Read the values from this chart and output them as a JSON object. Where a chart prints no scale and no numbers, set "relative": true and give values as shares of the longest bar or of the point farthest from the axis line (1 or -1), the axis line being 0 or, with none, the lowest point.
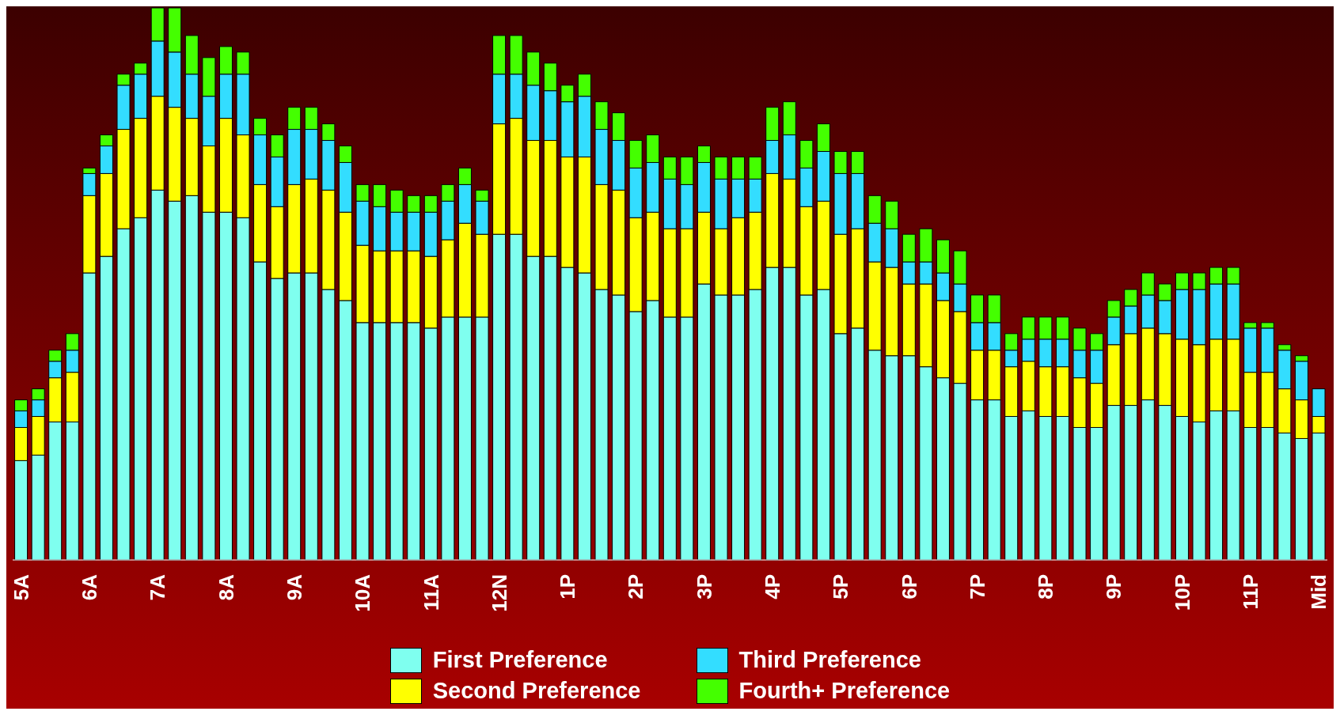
{
  "chart_data": {
    "type": "bar",
    "stacked": true,
    "relative": true,
    "legend": "bottom",
    "categories": [
      "5A",
      null,
      null,
      null,
      "6A",
      null,
      null,
      null,
      "7A",
      null,
      null,
      null,
      "8A",
      null,
      null,
      null,
      "9A",
      null,
      null,
      null,
      "10A",
      null,
      null,
      null,
      "11A",
      null,
      null,
      null,
      "12N",
      null,
      null,
      null,
      "1P",
      null,
      null,
      null,
      "2P",
      null,
      null,
      null,
      "3P",
      null,
      null,
      null,
      "4P",
      null,
      null,
      null,
      "5P",
      null,
      null,
      null,
      "6P",
      null,
      null,
      null,
      "7P",
      null,
      null,
      null,
      "8P",
      null,
      null,
      null,
      "9P",
      null,
      null,
      null,
      "10P",
      null,
      null,
      null,
      "11P",
      null,
      null,
      null,
      "Mid"
    ],
    "series": [
      {
        "name": "First Preference",
        "color": "#7fffef",
        "values": [
          0.18,
          0.19,
          0.25,
          0.25,
          0.52,
          0.55,
          0.6,
          0.62,
          0.67,
          0.65,
          0.66,
          0.63,
          0.63,
          0.62,
          0.54,
          0.51,
          0.52,
          0.52,
          0.49,
          0.47,
          0.43,
          0.43,
          0.43,
          0.43,
          0.42,
          0.44,
          0.44,
          0.44,
          0.59,
          0.59,
          0.55,
          0.55,
          0.53,
          0.52,
          0.49,
          0.48,
          0.45,
          0.47,
          0.44,
          0.44,
          0.5,
          0.48,
          0.48,
          0.49,
          0.53,
          0.53,
          0.48,
          0.49,
          0.41,
          0.42,
          0.38,
          0.37,
          0.37,
          0.35,
          0.33,
          0.32,
          0.29,
          0.29,
          0.26,
          0.27,
          0.26,
          0.26,
          0.24,
          0.24,
          0.28,
          0.28,
          0.29,
          0.28,
          0.26,
          0.25,
          0.27,
          0.27,
          0.24,
          0.24,
          0.23,
          0.22,
          0.23
        ]
      },
      {
        "name": "Second Preference",
        "color": "#ffff00",
        "values": [
          0.06,
          0.07,
          0.08,
          0.09,
          0.14,
          0.15,
          0.18,
          0.18,
          0.17,
          0.17,
          0.14,
          0.12,
          0.17,
          0.15,
          0.14,
          0.13,
          0.16,
          0.17,
          0.18,
          0.16,
          0.14,
          0.13,
          0.13,
          0.13,
          0.13,
          0.14,
          0.17,
          0.15,
          0.2,
          0.21,
          0.21,
          0.21,
          0.2,
          0.21,
          0.19,
          0.19,
          0.17,
          0.16,
          0.16,
          0.16,
          0.13,
          0.12,
          0.14,
          0.14,
          0.17,
          0.16,
          0.16,
          0.16,
          0.18,
          0.18,
          0.16,
          0.16,
          0.13,
          0.15,
          0.14,
          0.13,
          0.09,
          0.09,
          0.09,
          0.09,
          0.09,
          0.09,
          0.09,
          0.08,
          0.11,
          0.13,
          0.13,
          0.13,
          0.14,
          0.14,
          0.13,
          0.13,
          0.1,
          0.1,
          0.08,
          0.07,
          0.03
        ]
      },
      {
        "name": "Third Preference",
        "color": "#33ddff",
        "values": [
          0.03,
          0.03,
          0.03,
          0.04,
          0.04,
          0.05,
          0.08,
          0.08,
          0.1,
          0.1,
          0.08,
          0.09,
          0.08,
          0.11,
          0.09,
          0.09,
          0.1,
          0.09,
          0.09,
          0.09,
          0.08,
          0.08,
          0.07,
          0.07,
          0.08,
          0.07,
          0.07,
          0.06,
          0.09,
          0.08,
          0.1,
          0.09,
          0.1,
          0.11,
          0.1,
          0.09,
          0.09,
          0.09,
          0.09,
          0.08,
          0.09,
          0.09,
          0.07,
          0.06,
          0.06,
          0.08,
          0.07,
          0.09,
          0.11,
          0.1,
          0.07,
          0.07,
          0.04,
          0.04,
          0.05,
          0.05,
          0.05,
          0.05,
          0.03,
          0.04,
          0.05,
          0.05,
          0.05,
          0.06,
          0.05,
          0.05,
          0.06,
          0.06,
          0.09,
          0.1,
          0.1,
          0.1,
          0.08,
          0.08,
          0.07,
          0.07,
          0.05
        ]
      },
      {
        "name": "Fourth+ Preference",
        "color": "#44ff00",
        "values": [
          0.02,
          0.02,
          0.02,
          0.03,
          0.01,
          0.02,
          0.02,
          0.02,
          0.06,
          0.08,
          0.07,
          0.07,
          0.05,
          0.04,
          0.03,
          0.04,
          0.04,
          0.04,
          0.03,
          0.03,
          0.03,
          0.04,
          0.04,
          0.03,
          0.03,
          0.03,
          0.03,
          0.02,
          0.07,
          0.07,
          0.06,
          0.05,
          0.03,
          0.04,
          0.05,
          0.05,
          0.05,
          0.05,
          0.04,
          0.05,
          0.03,
          0.04,
          0.04,
          0.04,
          0.06,
          0.06,
          0.05,
          0.05,
          0.04,
          0.04,
          0.05,
          0.05,
          0.05,
          0.06,
          0.06,
          0.06,
          0.05,
          0.05,
          0.03,
          0.04,
          0.04,
          0.04,
          0.04,
          0.03,
          0.03,
          0.03,
          0.04,
          0.03,
          0.03,
          0.03,
          0.03,
          0.03,
          0.01,
          0.01,
          0.01,
          0.01,
          0
        ]
      }
    ]
  }
}
